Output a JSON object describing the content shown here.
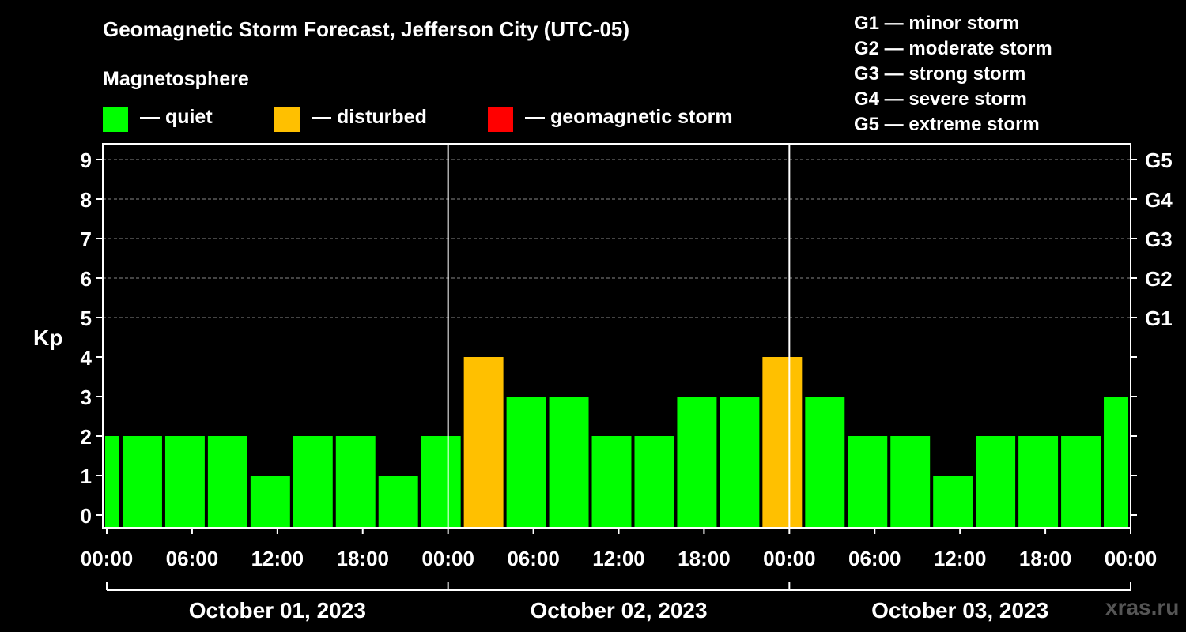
{
  "title": "Geomagnetic Storm Forecast, Jefferson City (UTC-05)",
  "magnetosphere_label": "Magnetosphere",
  "legend": [
    {
      "label": "— quiet",
      "color": "#00ff00"
    },
    {
      "label": "— disturbed",
      "color": "#ffc000"
    },
    {
      "label": "— geomagnetic storm",
      "color": "#ff0000"
    }
  ],
  "g_scale": [
    "G1 — minor storm",
    "G2 — moderate storm",
    "G3 — strong storm",
    "G4 — severe storm",
    "G5 — extreme storm"
  ],
  "watermark": "xras.ru",
  "chart_data": {
    "type": "bar",
    "ylabel": "Kp",
    "ylim": [
      0,
      9
    ],
    "yticks": [
      0,
      1,
      2,
      3,
      4,
      5,
      6,
      7,
      8,
      9
    ],
    "right_ticks": [
      {
        "kp": 5,
        "label": "G1"
      },
      {
        "kp": 6,
        "label": "G2"
      },
      {
        "kp": 7,
        "label": "G3"
      },
      {
        "kp": 8,
        "label": "G4"
      },
      {
        "kp": 9,
        "label": "G5"
      }
    ],
    "grid": "dashed horizontal at Kp 5–9",
    "xtick_labels": [
      "00:00",
      "06:00",
      "12:00",
      "18:00",
      "00:00",
      "06:00",
      "12:00",
      "18:00",
      "00:00",
      "06:00",
      "12:00",
      "18:00",
      "00:00"
    ],
    "days": [
      "October 01, 2023",
      "October 02, 2023",
      "October 03, 2023"
    ],
    "bar_hours": 3,
    "first_bar_start_hour": -2,
    "values": [
      2,
      2,
      2,
      2,
      1,
      2,
      2,
      1,
      2,
      4,
      3,
      3,
      2,
      2,
      3,
      3,
      4,
      3,
      2,
      2,
      1,
      2,
      2,
      2,
      3
    ],
    "status": [
      "quiet",
      "quiet",
      "quiet",
      "quiet",
      "quiet",
      "quiet",
      "quiet",
      "quiet",
      "quiet",
      "disturbed",
      "quiet",
      "quiet",
      "quiet",
      "quiet",
      "quiet",
      "quiet",
      "disturbed",
      "quiet",
      "quiet",
      "quiet",
      "quiet",
      "quiet",
      "quiet",
      "quiet",
      "quiet"
    ],
    "colors": {
      "quiet": "#00ff00",
      "disturbed": "#ffc000",
      "storm": "#ff0000"
    }
  }
}
